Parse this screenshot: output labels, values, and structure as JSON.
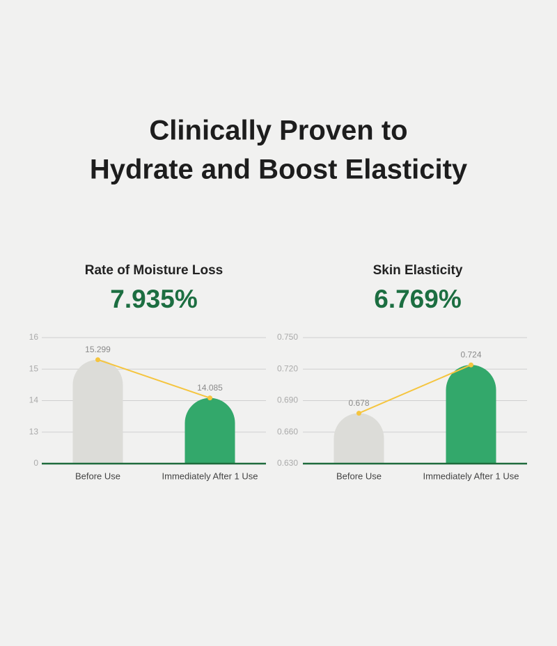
{
  "title_lines": [
    "Clinically Proven to",
    "Hydrate and Boost Elasticity"
  ],
  "chart_data": [
    {
      "type": "bar",
      "title": "Rate of Moisture Loss",
      "headline": "7.935%",
      "categories": [
        "Before Use",
        "Immediately After 1 Use"
      ],
      "values": [
        15.299,
        14.085
      ],
      "colors": [
        "#dcdcd8",
        "#33a86b"
      ],
      "line_color": "#f5c53f",
      "ylim": [
        0,
        16
      ],
      "yticks": [
        0,
        13,
        14,
        15,
        16
      ],
      "grid": true
    },
    {
      "type": "bar",
      "title": "Skin Elasticity",
      "headline": "6.769%",
      "categories": [
        "Before Use",
        "Immediately After 1 Use"
      ],
      "values": [
        0.678,
        0.724
      ],
      "colors": [
        "#dcdcd8",
        "#33a86b"
      ],
      "line_color": "#f5c53f",
      "ylim": [
        0.63,
        0.75
      ],
      "yticks": [
        {
          "value": 0.63,
          "label": "0.630"
        },
        {
          "value": 0.66,
          "label": "0.660"
        },
        {
          "value": 0.69,
          "label": "0.690"
        },
        {
          "value": 0.72,
          "label": "0.720"
        },
        {
          "value": 0.75,
          "label": "0.750"
        }
      ],
      "grid": true
    }
  ]
}
